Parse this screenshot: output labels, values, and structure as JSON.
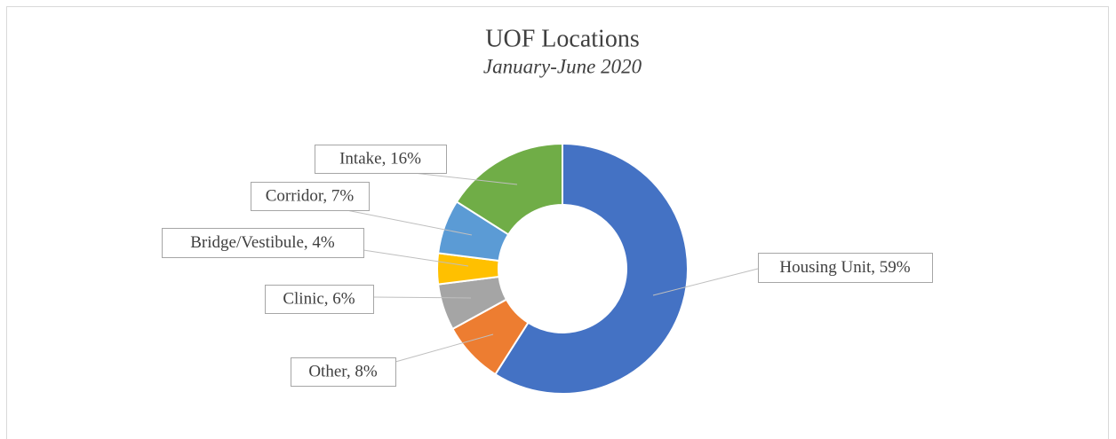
{
  "chart_data": {
    "type": "donut",
    "title": "UOF Locations",
    "subtitle": "January-June 2020",
    "categories": [
      "Housing Unit",
      "Other",
      "Clinic",
      "Bridge/Vestibule",
      "Corridor",
      "Intake"
    ],
    "values": [
      59,
      8,
      6,
      4,
      7,
      16
    ],
    "value_labels": [
      "Housing Unit, 59%",
      "Other, 8%",
      "Clinic, 6%",
      "Bridge/Vestibule, 4%",
      "Corridor, 7%",
      "Intake, 16%"
    ],
    "colors": [
      "#4472c4",
      "#ed7d31",
      "#a5a5a5",
      "#ffc000",
      "#5b9bd5",
      "#70ad47"
    ]
  }
}
